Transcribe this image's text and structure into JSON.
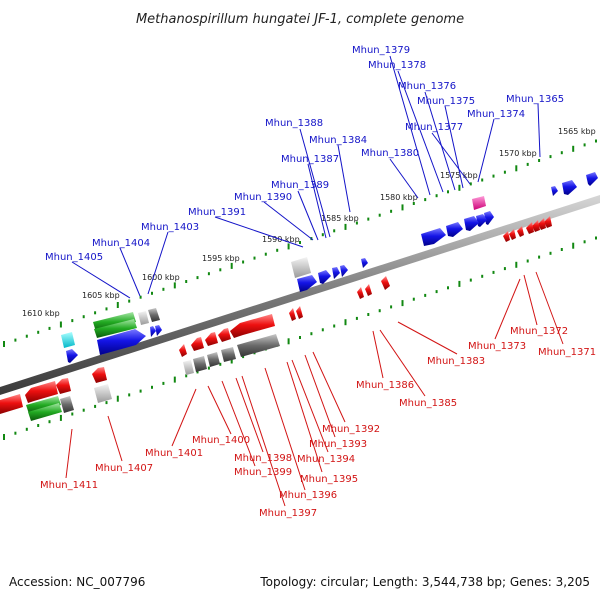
{
  "title": "Methanospirillum hungatei JF-1, complete genome",
  "footer": {
    "accession": "Accession: NC_007796",
    "summary": "Topology: circular; Length: 3,544,738 bp; Genes: 3,205"
  },
  "scale_labels": [
    "1565 kbp",
    "1570 kbp",
    "1575 kbp",
    "1580 kbp",
    "1585 kbp",
    "1590 kbp",
    "1595 kbp",
    "1600 kbp",
    "1605 kbp",
    "1610 kbp"
  ],
  "top_labels": [
    "Mhun_1379",
    "Mhun_1378",
    "Mhun_1376",
    "Mhun_1375",
    "Mhun_1365",
    "Mhun_1374",
    "Mhun_1377",
    "Mhun_1388",
    "Mhun_1384",
    "Mhun_1380",
    "Mhun_1387",
    "Mhun_1389",
    "Mhun_1390",
    "Mhun_1391",
    "Mhun_1403",
    "Mhun_1404",
    "Mhun_1405"
  ],
  "bottom_labels": [
    "Mhun_1372",
    "Mhun_1371",
    "Mhun_1373",
    "Mhun_1383",
    "Mhun_1386",
    "Mhun_1385",
    "Mhun_1392",
    "Mhun_1393",
    "Mhun_1394",
    "Mhun_1395",
    "Mhun_1396",
    "Mhun_1397",
    "Mhun_1398",
    "Mhun_1399",
    "Mhun_1400",
    "Mhun_1401",
    "Mhun_1407",
    "Mhun_1411"
  ],
  "colors": {
    "forward": "#1010e0",
    "reverse": "#ee1010",
    "rna": "#22aa22",
    "pseudo": "#777777",
    "other": "#00dddd",
    "special": "#ee22aa",
    "backbone": "#808080",
    "scale_ticks": "#118811"
  }
}
